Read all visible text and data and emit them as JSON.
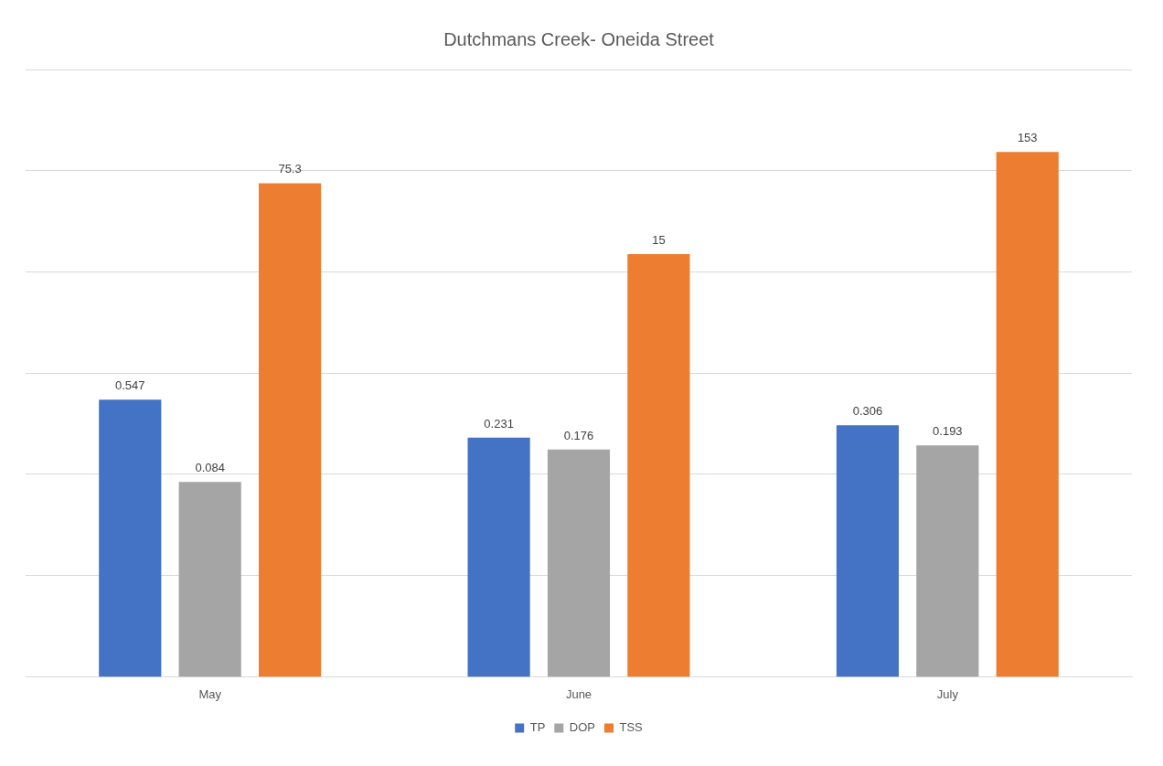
{
  "chart_data": {
    "type": "bar",
    "title": "Dutchmans Creek- Oneida Street",
    "categories": [
      "May",
      "June",
      "July"
    ],
    "series": [
      {
        "name": "TP",
        "color": "#4472c4",
        "values": [
          0.547,
          0.231,
          0.306
        ]
      },
      {
        "name": "DOP",
        "color": "#a5a5a5",
        "values": [
          0.084,
          0.176,
          0.193
        ]
      },
      {
        "name": "TSS",
        "color": "#ed7d31",
        "values": [
          75.3,
          15,
          153
        ]
      }
    ],
    "log": "y",
    "ylim": [
      0.001,
      1000
    ],
    "yticks": [
      {
        "value": 0.001,
        "label": null
      },
      {
        "value": 0.01,
        "label": null
      },
      {
        "value": 0.1,
        "label": null
      },
      {
        "value": 1,
        "label": null
      },
      {
        "value": 10,
        "label": null
      },
      {
        "value": 100,
        "label": null
      },
      {
        "value": 1000,
        "label": null
      }
    ],
    "tick_labels": "x",
    "grid": "y",
    "legend": "bottom",
    "data_labels": true
  }
}
